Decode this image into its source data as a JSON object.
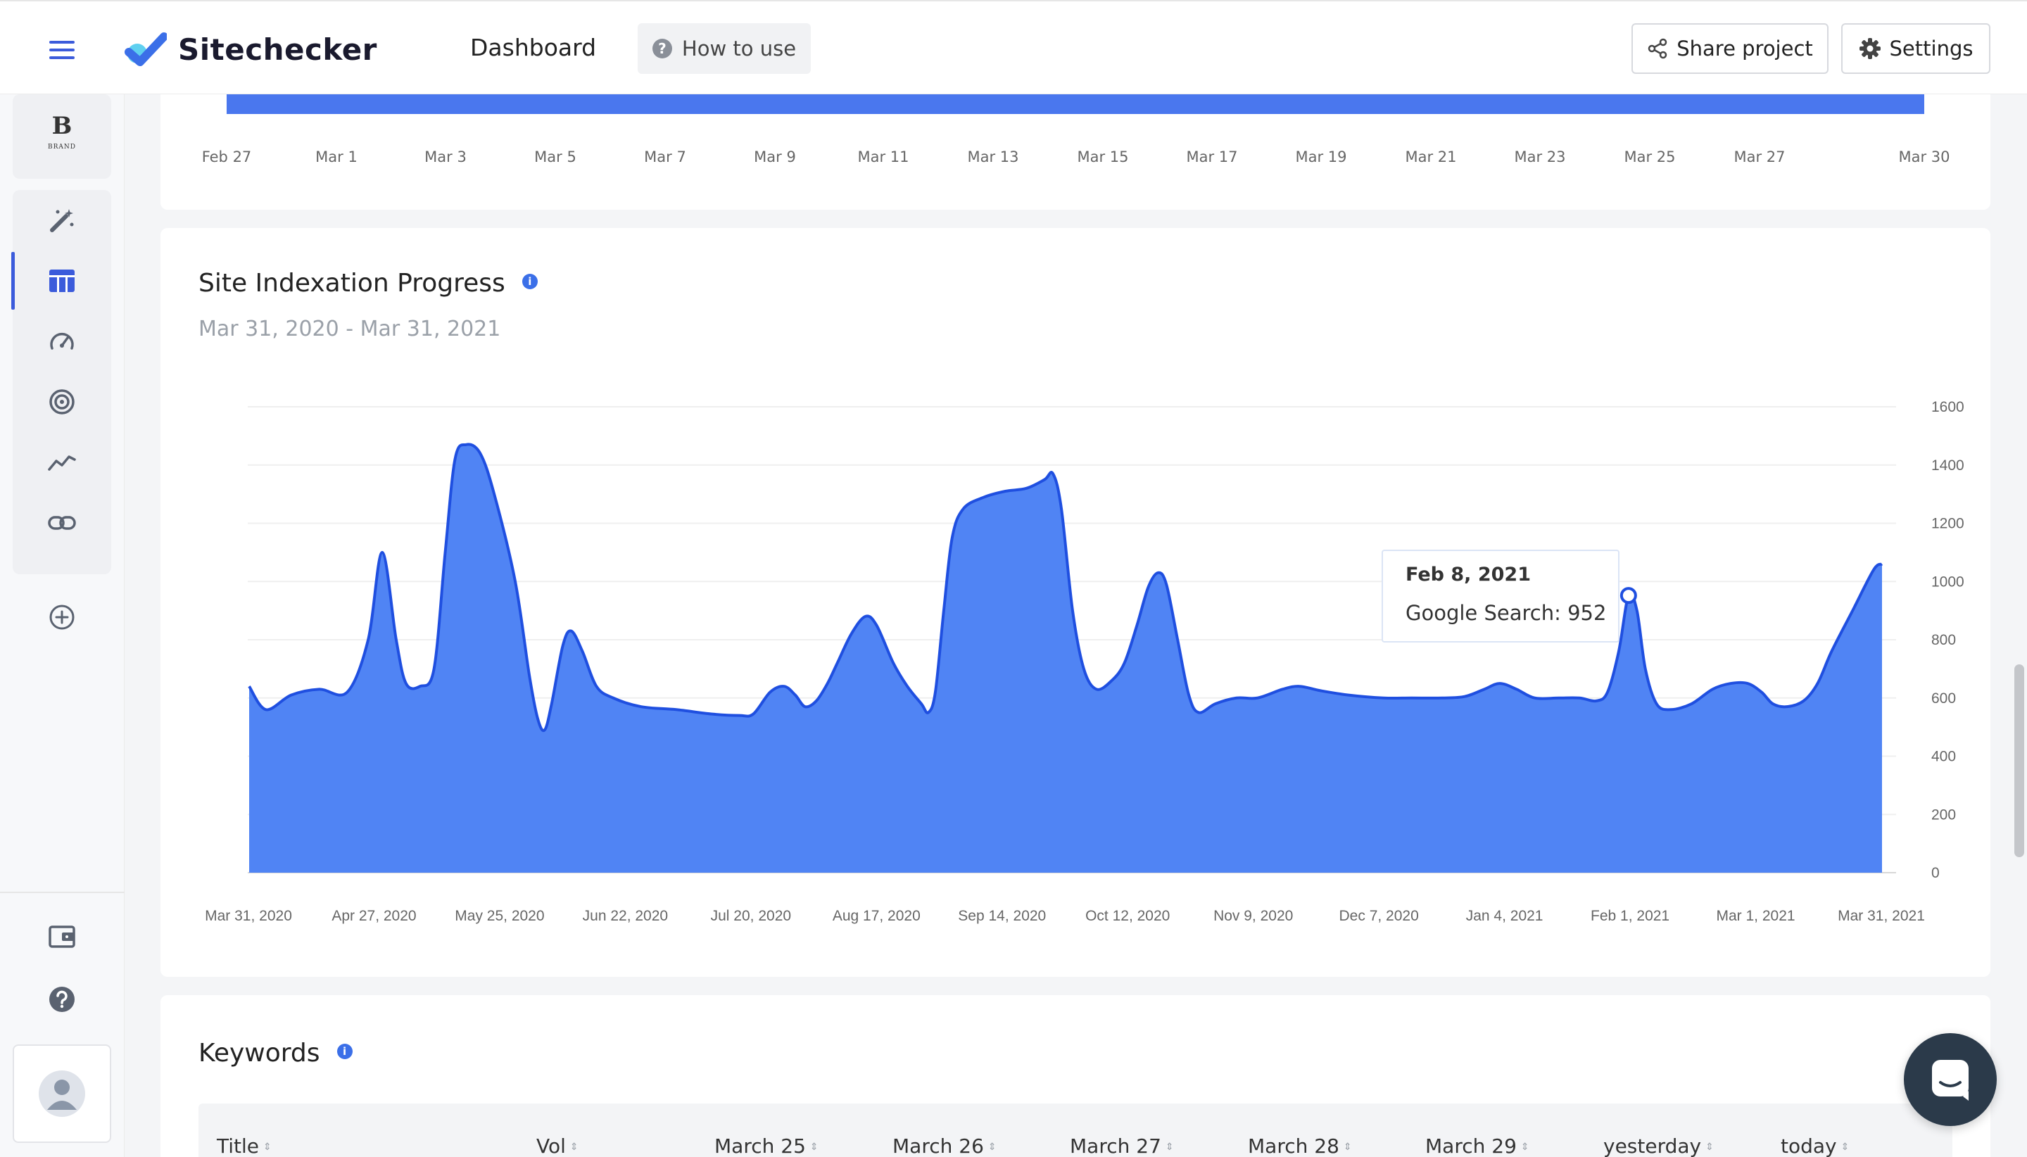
{
  "header": {
    "brand": "Sitechecker",
    "nav_title": "Dashboard",
    "how_to_use": "How to use",
    "share_label": "Share project",
    "settings_label": "Settings"
  },
  "sidebar": {
    "project_logo": "B",
    "project_logo_small": "BRAND",
    "items": [
      {
        "icon": "magic-wand-icon"
      },
      {
        "icon": "table-icon",
        "active": true
      },
      {
        "icon": "speedometer-icon"
      },
      {
        "icon": "target-icon"
      },
      {
        "icon": "trend-line-icon"
      },
      {
        "icon": "link-icon"
      }
    ],
    "bottom": [
      {
        "icon": "wallet-icon"
      },
      {
        "icon": "help-icon"
      },
      {
        "icon": "user-avatar-icon"
      }
    ]
  },
  "top_card": {
    "axis_labels": [
      "Feb 27",
      "Mar 1",
      "Mar 3",
      "Mar 5",
      "Mar 7",
      "Mar 9",
      "Mar 11",
      "Mar 13",
      "Mar 15",
      "Mar 17",
      "Mar 19",
      "Mar 21",
      "Mar 23",
      "Mar 25",
      "Mar 27",
      "Mar 30"
    ]
  },
  "indexation": {
    "title": "Site Indexation Progress",
    "date_range": "Mar 31, 2020 - Mar 31, 2021",
    "tooltip": {
      "date": "Feb 8, 2021",
      "value_text": "Google Search: 952"
    }
  },
  "chart_data": {
    "type": "area",
    "title": "Site Indexation Progress",
    "series": [
      {
        "name": "Google Search",
        "color": "#4a77ee"
      }
    ],
    "x_labels": [
      "Mar 31, 2020",
      "Apr 27, 2020",
      "May 25, 2020",
      "Jun 22, 2020",
      "Jul 20, 2020",
      "Aug 17, 2020",
      "Sep 14, 2020",
      "Oct 12, 2020",
      "Nov 9, 2020",
      "Dec 7, 2020",
      "Jan 4, 2021",
      "Feb 1, 2021",
      "Mar 1, 2021",
      "Mar 31, 2021"
    ],
    "y_ticks": [
      0,
      200,
      400,
      600,
      800,
      1000,
      1200,
      1400,
      1600
    ],
    "ylim": [
      0,
      1600
    ],
    "y_axis_position": "right",
    "grid": true,
    "points": [
      [
        0,
        640
      ],
      [
        12,
        560
      ],
      [
        30,
        610
      ],
      [
        50,
        630
      ],
      [
        70,
        620
      ],
      [
        85,
        800
      ],
      [
        95,
        1100
      ],
      [
        105,
        800
      ],
      [
        112,
        650
      ],
      [
        122,
        640
      ],
      [
        132,
        700
      ],
      [
        140,
        1100
      ],
      [
        147,
        1420
      ],
      [
        155,
        1470
      ],
      [
        165,
        1440
      ],
      [
        175,
        1300
      ],
      [
        190,
        1000
      ],
      [
        200,
        680
      ],
      [
        206,
        530
      ],
      [
        211,
        490
      ],
      [
        216,
        580
      ],
      [
        224,
        780
      ],
      [
        230,
        830
      ],
      [
        238,
        760
      ],
      [
        248,
        640
      ],
      [
        260,
        600
      ],
      [
        280,
        570
      ],
      [
        305,
        560
      ],
      [
        330,
        545
      ],
      [
        350,
        540
      ],
      [
        360,
        545
      ],
      [
        372,
        620
      ],
      [
        382,
        640
      ],
      [
        390,
        610
      ],
      [
        397,
        570
      ],
      [
        405,
        590
      ],
      [
        413,
        650
      ],
      [
        420,
        720
      ],
      [
        430,
        820
      ],
      [
        440,
        880
      ],
      [
        448,
        850
      ],
      [
        460,
        720
      ],
      [
        470,
        640
      ],
      [
        480,
        580
      ],
      [
        485,
        550
      ],
      [
        490,
        620
      ],
      [
        496,
        900
      ],
      [
        502,
        1150
      ],
      [
        510,
        1250
      ],
      [
        525,
        1290
      ],
      [
        540,
        1310
      ],
      [
        555,
        1320
      ],
      [
        568,
        1350
      ],
      [
        574,
        1370
      ],
      [
        580,
        1250
      ],
      [
        588,
        900
      ],
      [
        596,
        700
      ],
      [
        605,
        630
      ],
      [
        616,
        660
      ],
      [
        625,
        720
      ],
      [
        634,
        850
      ],
      [
        642,
        980
      ],
      [
        649,
        1030
      ],
      [
        655,
        990
      ],
      [
        663,
        800
      ],
      [
        671,
        610
      ],
      [
        678,
        550
      ],
      [
        690,
        580
      ],
      [
        705,
        600
      ],
      [
        720,
        600
      ],
      [
        738,
        630
      ],
      [
        750,
        640
      ],
      [
        765,
        625
      ],
      [
        785,
        610
      ],
      [
        810,
        600
      ],
      [
        830,
        600
      ],
      [
        852,
        600
      ],
      [
        868,
        605
      ],
      [
        882,
        630
      ],
      [
        893,
        650
      ],
      [
        905,
        630
      ],
      [
        918,
        600
      ],
      [
        935,
        600
      ],
      [
        950,
        600
      ],
      [
        962,
        590
      ],
      [
        970,
        620
      ],
      [
        978,
        760
      ],
      [
        985,
        952
      ],
      [
        991,
        900
      ],
      [
        997,
        700
      ],
      [
        1005,
        580
      ],
      [
        1015,
        560
      ],
      [
        1030,
        580
      ],
      [
        1045,
        630
      ],
      [
        1058,
        650
      ],
      [
        1070,
        650
      ],
      [
        1080,
        620
      ],
      [
        1088,
        580
      ],
      [
        1098,
        570
      ],
      [
        1110,
        590
      ],
      [
        1120,
        650
      ],
      [
        1130,
        760
      ],
      [
        1145,
        900
      ],
      [
        1160,
        1040
      ],
      [
        1166,
        1060
      ]
    ],
    "x_max": 1166,
    "highlight": {
      "x": 985,
      "value": 952,
      "label": "Feb 8, 2021"
    }
  },
  "keywords": {
    "title": "Keywords",
    "columns": [
      "Title",
      "Vol",
      "March 25",
      "March 26",
      "March 27",
      "March 28",
      "March 29",
      "yesterday",
      "today"
    ]
  }
}
